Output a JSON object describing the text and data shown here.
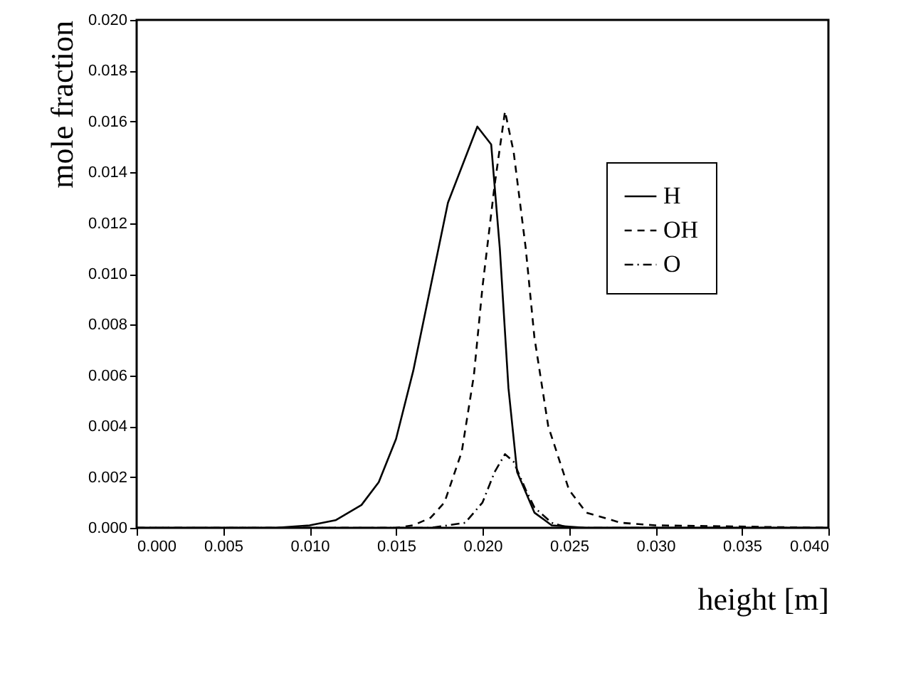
{
  "chart_data": {
    "type": "line",
    "xlabel": "height [m]",
    "ylabel": "mole fraction",
    "xlim": [
      0,
      0.04
    ],
    "ylim": [
      0,
      0.02
    ],
    "xticks": [
      {
        "value": 0,
        "label": "0.000"
      },
      {
        "value": 0.005,
        "label": "0.005"
      },
      {
        "value": 0.01,
        "label": "0.010"
      },
      {
        "value": 0.015,
        "label": "0.015"
      },
      {
        "value": 0.02,
        "label": "0.020"
      },
      {
        "value": 0.025,
        "label": "0.025"
      },
      {
        "value": 0.03,
        "label": "0.030"
      },
      {
        "value": 0.035,
        "label": "0.035"
      },
      {
        "value": 0.04,
        "label": "0.040"
      }
    ],
    "yticks": [
      {
        "value": 0,
        "label": "0.000"
      },
      {
        "value": 0.002,
        "label": "0.002"
      },
      {
        "value": 0.004,
        "label": "0.004"
      },
      {
        "value": 0.006,
        "label": "0.006"
      },
      {
        "value": 0.008,
        "label": "0.008"
      },
      {
        "value": 0.01,
        "label": "0.010"
      },
      {
        "value": 0.012,
        "label": "0.012"
      },
      {
        "value": 0.014,
        "label": "0.014"
      },
      {
        "value": 0.016,
        "label": "0.016"
      },
      {
        "value": 0.018,
        "label": "0.018"
      },
      {
        "value": 0.02,
        "label": "0.020"
      }
    ],
    "grid": false,
    "legend": "top right",
    "series": [
      {
        "name": "H",
        "color": "#000000",
        "line_style": "solid",
        "x": [
          0,
          0.008,
          0.01,
          0.0115,
          0.013,
          0.014,
          0.015,
          0.016,
          0.017,
          0.018,
          0.0197,
          0.0205,
          0.021,
          0.0215,
          0.022,
          0.023,
          0.024,
          0.026,
          0.04
        ],
        "values": [
          0,
          0,
          0.0001,
          0.0003,
          0.0009,
          0.0018,
          0.0035,
          0.0062,
          0.0095,
          0.0128,
          0.0158,
          0.0151,
          0.011,
          0.0055,
          0.0022,
          0.0006,
          0.0001,
          0,
          0
        ]
      },
      {
        "name": "OH",
        "color": "#000000",
        "line_style": "dashed",
        "x": [
          0,
          0.015,
          0.016,
          0.017,
          0.0178,
          0.0188,
          0.0195,
          0.02,
          0.0207,
          0.0213,
          0.0218,
          0.0225,
          0.023,
          0.0238,
          0.025,
          0.026,
          0.028,
          0.03,
          0.04
        ],
        "values": [
          0,
          0,
          0.0001,
          0.0004,
          0.001,
          0.003,
          0.006,
          0.0095,
          0.0135,
          0.0164,
          0.0148,
          0.011,
          0.0075,
          0.004,
          0.0015,
          0.0006,
          0.0002,
          0.0001,
          0
        ]
      },
      {
        "name": "O",
        "color": "#000000",
        "line_style": "dashdot",
        "x": [
          0,
          0.017,
          0.019,
          0.02,
          0.0207,
          0.0213,
          0.0218,
          0.0225,
          0.023,
          0.024,
          0.025,
          0.03,
          0.04
        ],
        "values": [
          0,
          0,
          0.0002,
          0.001,
          0.0022,
          0.0029,
          0.0026,
          0.0015,
          0.0008,
          0.0002,
          0,
          0,
          0
        ]
      }
    ]
  }
}
